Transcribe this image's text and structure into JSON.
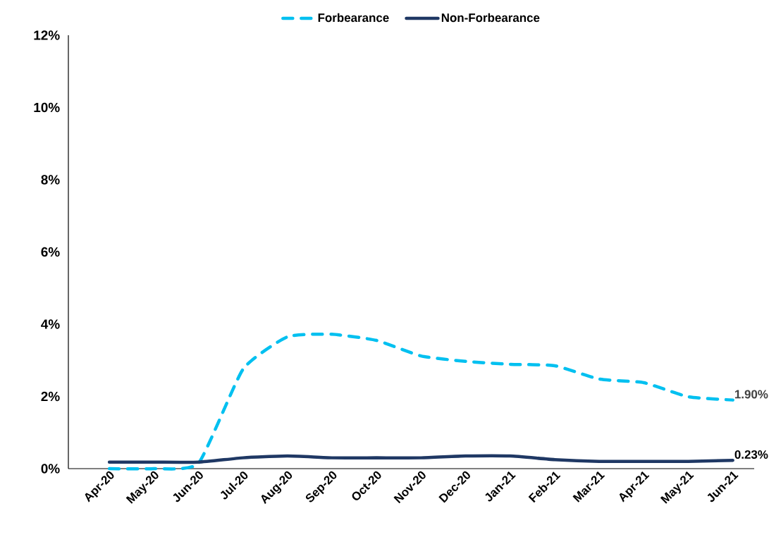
{
  "chart_data": {
    "type": "line",
    "categories": [
      "Apr-20",
      "May-20",
      "Jun-20",
      "Jul-20",
      "Aug-20",
      "Sep-20",
      "Oct-20",
      "Nov-20",
      "Dec-20",
      "Jan-21",
      "Feb-21",
      "Mar-21",
      "Apr-21",
      "May-21",
      "Jun-21"
    ],
    "series": [
      {
        "name": "Forbearance",
        "color": "#00c0f0",
        "line_style": "dashed",
        "values": [
          0,
          0,
          0.15,
          2.75,
          3.65,
          3.72,
          3.55,
          3.12,
          2.97,
          2.89,
          2.85,
          2.48,
          2.38,
          1.99,
          1.9
        ],
        "value_labels": [
          null,
          null,
          null,
          null,
          null,
          null,
          null,
          null,
          null,
          null,
          null,
          null,
          null,
          null,
          "1.90%"
        ]
      },
      {
        "name": "Non-Forbearance",
        "color": "#1f3864",
        "line_style": "solid",
        "values": [
          0.18,
          0.18,
          0.18,
          0.3,
          0.35,
          0.3,
          0.3,
          0.3,
          0.35,
          0.35,
          0.25,
          0.2,
          0.2,
          0.2,
          0.23
        ],
        "value_labels": [
          null,
          null,
          null,
          null,
          null,
          null,
          null,
          null,
          null,
          null,
          null,
          null,
          null,
          null,
          "0.23%"
        ]
      }
    ],
    "ylim": [
      0,
      12
    ],
    "yticks": [
      {
        "value": 0,
        "label": "0%"
      },
      {
        "value": 2,
        "label": "2%"
      },
      {
        "value": 4,
        "label": "4%"
      },
      {
        "value": 6,
        "label": "6%"
      },
      {
        "value": 8,
        "label": "8%"
      },
      {
        "value": 10,
        "label": "10%"
      },
      {
        "value": 12,
        "label": "12%"
      }
    ],
    "legend": "top"
  }
}
